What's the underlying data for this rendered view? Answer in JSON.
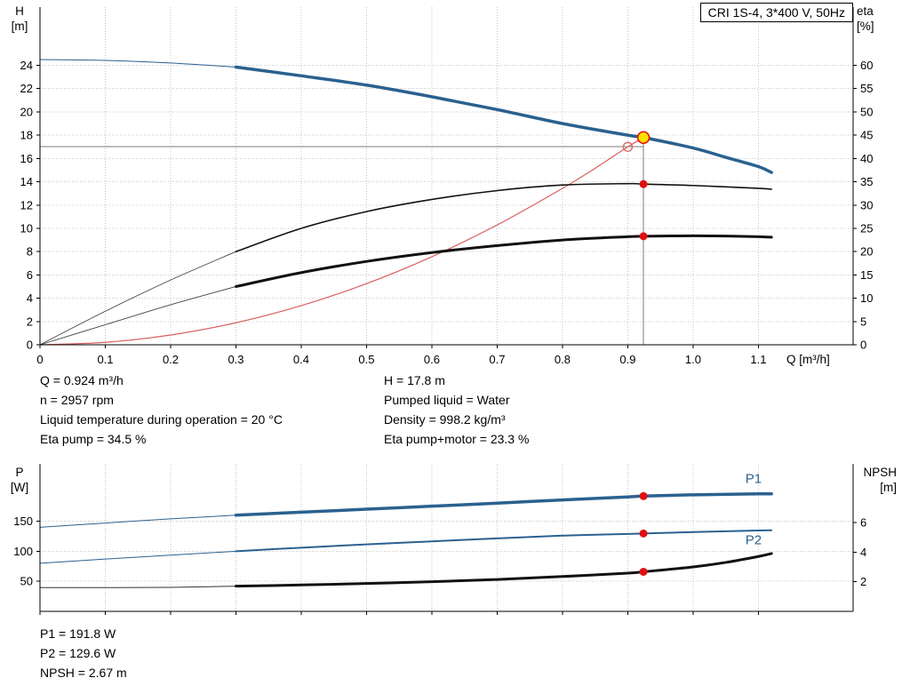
{
  "colors": {
    "curve_blue": "#2a618f",
    "curve_black": "#111111",
    "system_red": "#d95f5f",
    "marker_red": "#e01010",
    "duty_yellow": "#ffdf00",
    "grid_gray": "#c9c9c9",
    "guide_gray": "#7d7d7d"
  },
  "operating_point_info": {
    "left": [
      "Q = 0.924 m³/h",
      "n = 2957 rpm",
      "Liquid temperature during operation = 20 °C",
      "Eta pump = 34.5 %"
    ],
    "right": [
      "H = 17.8 m",
      "Pumped liquid = Water",
      "Density = 998.2 kg/m³",
      "Eta pump+motor = 23.3 %"
    ]
  },
  "power_info": [
    "P1 = 191.8 W",
    "P2 = 129.6 W",
    "NPSH = 2.67 m"
  ],
  "chart_data": [
    {
      "type": "line",
      "title": "CRI 1S-4, 3*400 V, 50Hz",
      "xlabel": "Q [m³/h]",
      "ylabel_left": "H",
      "ylabel_left_unit": "[m]",
      "ylabel_right": "eta",
      "ylabel_right_unit": "[%]",
      "xlim": [
        0,
        1.245
      ],
      "ylim_left": [
        0,
        29
      ],
      "ylim_right": [
        0,
        72.5
      ],
      "grid": true,
      "x_ticks": [
        0,
        0.1,
        0.2,
        0.3,
        0.4,
        0.5,
        0.6,
        0.7,
        0.8,
        0.9,
        1.0,
        1.1
      ],
      "x_tick_labels": [
        "0",
        "0.1",
        "0.2",
        "0.3",
        "0.4",
        "0.5",
        "0.6",
        "0.7",
        "0.8",
        "0.9",
        "1.0",
        "1.1"
      ],
      "y_ticks_left": [
        0,
        2,
        4,
        6,
        8,
        10,
        12,
        14,
        16,
        18,
        20,
        22,
        24
      ],
      "y_ticks_right": [
        0,
        5,
        10,
        15,
        20,
        25,
        30,
        35,
        40,
        45,
        50,
        55,
        60
      ],
      "guides": {
        "h_line": {
          "y": 17.0,
          "x_end": 0.924
        },
        "v_line": {
          "x": 0.924,
          "y_top": 17.8
        }
      },
      "series": [
        {
          "name": "system-curve",
          "axis": "left",
          "color": "#d95f5f",
          "width": 1.2,
          "points": [
            [
              0,
              0
            ],
            [
              0.1,
              0.21
            ],
            [
              0.2,
              0.84
            ],
            [
              0.3,
              1.89
            ],
            [
              0.4,
              3.36
            ],
            [
              0.5,
              5.25
            ],
            [
              0.6,
              7.56
            ],
            [
              0.7,
              10.29
            ],
            [
              0.8,
              13.43
            ],
            [
              0.85,
              15.16
            ],
            [
              0.9,
              17.0
            ],
            [
              0.924,
              17.8
            ]
          ]
        },
        {
          "name": "head-curve-low-flow",
          "axis": "left",
          "color": "#2a618f",
          "width": 1,
          "points": [
            [
              0,
              24.5
            ],
            [
              0.1,
              24.42
            ],
            [
              0.2,
              24.2
            ],
            [
              0.3,
              23.85
            ]
          ]
        },
        {
          "name": "head-curve",
          "axis": "left",
          "color": "#2a618f",
          "width": 3.5,
          "points": [
            [
              0.3,
              23.85
            ],
            [
              0.4,
              23.1
            ],
            [
              0.5,
              22.3
            ],
            [
              0.6,
              21.3
            ],
            [
              0.7,
              20.2
            ],
            [
              0.8,
              19.0
            ],
            [
              0.9,
              18.0
            ],
            [
              0.924,
              17.8
            ],
            [
              1.0,
              16.9
            ],
            [
              1.05,
              16.1
            ],
            [
              1.1,
              15.3
            ],
            [
              1.12,
              14.8
            ]
          ]
        },
        {
          "name": "eta-pump-low-flow",
          "axis": "right",
          "color": "#444444",
          "width": 0.9,
          "points": [
            [
              0,
              0
            ],
            [
              0.1,
              7.2
            ],
            [
              0.2,
              13.9
            ],
            [
              0.3,
              20
            ]
          ]
        },
        {
          "name": "eta-pump-motor-low-flow",
          "axis": "right",
          "color": "#444444",
          "width": 0.9,
          "points": [
            [
              0,
              0
            ],
            [
              0.1,
              4.3
            ],
            [
              0.2,
              8.6
            ],
            [
              0.3,
              12.5
            ]
          ]
        },
        {
          "name": "eta-pump-curve",
          "axis": "right",
          "color": "#111111",
          "width": 1.6,
          "points": [
            [
              0.3,
              20
            ],
            [
              0.4,
              25
            ],
            [
              0.5,
              28.6
            ],
            [
              0.6,
              31.2
            ],
            [
              0.7,
              33.1
            ],
            [
              0.8,
              34.3
            ],
            [
              0.9,
              34.6
            ],
            [
              0.924,
              34.5
            ],
            [
              1.0,
              34.2
            ],
            [
              1.1,
              33.6
            ],
            [
              1.12,
              33.4
            ]
          ]
        },
        {
          "name": "eta-pump-motor-curve",
          "axis": "right",
          "color": "#111111",
          "width": 3,
          "points": [
            [
              0.3,
              12.5
            ],
            [
              0.4,
              15.5
            ],
            [
              0.5,
              17.9
            ],
            [
              0.6,
              19.8
            ],
            [
              0.7,
              21.3
            ],
            [
              0.8,
              22.5
            ],
            [
              0.9,
              23.2
            ],
            [
              0.924,
              23.3
            ],
            [
              1.0,
              23.4
            ],
            [
              1.05,
              23.35
            ],
            [
              1.1,
              23.2
            ],
            [
              1.12,
              23.1
            ]
          ]
        }
      ],
      "markers": [
        {
          "type": "open",
          "x": 0.9,
          "y": 17.0,
          "axis": "left",
          "name": "requested-duty-point"
        },
        {
          "type": "duty",
          "x": 0.924,
          "y": 17.8,
          "axis": "left",
          "name": "actual-duty-point"
        },
        {
          "type": "dot",
          "x": 0.924,
          "y": 34.5,
          "axis": "right",
          "name": "eta-pump-duty-marker"
        },
        {
          "type": "dot",
          "x": 0.924,
          "y": 23.3,
          "axis": "right",
          "name": "eta-pump-motor-duty-marker"
        }
      ]
    },
    {
      "type": "line",
      "ylabel_left": "P",
      "ylabel_left_unit": "[W]",
      "ylabel_right": "NPSH",
      "ylabel_right_unit": "[m]",
      "xlim": [
        0,
        1.245
      ],
      "ylim_left": [
        0,
        245.5
      ],
      "ylim_right": [
        0,
        9.95
      ],
      "grid": true,
      "x_ticks": [
        0,
        0.1,
        0.2,
        0.3,
        0.4,
        0.5,
        0.6,
        0.7,
        0.8,
        0.9,
        1.0,
        1.1
      ],
      "y_ticks_left": [
        50,
        100,
        150
      ],
      "y_ticks_right": [
        2,
        4,
        6
      ],
      "series": [
        {
          "name": "p1-curve-low-flow",
          "axis": "left",
          "color": "#2a618f",
          "width": 1,
          "points": [
            [
              0,
              140
            ],
            [
              0.1,
              147
            ],
            [
              0.2,
              154
            ],
            [
              0.3,
              160
            ]
          ]
        },
        {
          "name": "p2-curve-low-flow",
          "axis": "left",
          "color": "#2a618f",
          "width": 1,
          "points": [
            [
              0,
              80
            ],
            [
              0.1,
              87
            ],
            [
              0.2,
              93.5
            ],
            [
              0.3,
              100
            ]
          ]
        },
        {
          "name": "npsh-curve-low-flow",
          "axis": "right",
          "color": "#333333",
          "width": 1,
          "points": [
            [
              0,
              1.6
            ],
            [
              0.2,
              1.62
            ],
            [
              0.3,
              1.7
            ]
          ]
        },
        {
          "name": "p1-curve",
          "axis": "left",
          "color": "#2a618f",
          "width": 3.5,
          "points": [
            [
              0.3,
              160
            ],
            [
              0.4,
              165
            ],
            [
              0.5,
              170
            ],
            [
              0.6,
              175
            ],
            [
              0.7,
              180
            ],
            [
              0.8,
              185.5
            ],
            [
              0.9,
              190.5
            ],
            [
              0.924,
              191.8
            ],
            [
              1.0,
              194
            ],
            [
              1.1,
              195.5
            ],
            [
              1.12,
              195.5
            ]
          ]
        },
        {
          "name": "p2-curve",
          "axis": "left",
          "color": "#2a618f",
          "width": 2,
          "points": [
            [
              0.3,
              100
            ],
            [
              0.4,
              106
            ],
            [
              0.5,
              111.5
            ],
            [
              0.6,
              116.5
            ],
            [
              0.7,
              121.5
            ],
            [
              0.8,
              126
            ],
            [
              0.9,
              128.8
            ],
            [
              0.924,
              129.6
            ],
            [
              1.0,
              132
            ],
            [
              1.1,
              134.5
            ],
            [
              1.12,
              135
            ]
          ]
        },
        {
          "name": "npsh-curve",
          "axis": "right",
          "color": "#111111",
          "width": 3,
          "points": [
            [
              0.3,
              1.7
            ],
            [
              0.4,
              1.78
            ],
            [
              0.5,
              1.88
            ],
            [
              0.6,
              2.0
            ],
            [
              0.7,
              2.15
            ],
            [
              0.8,
              2.35
            ],
            [
              0.9,
              2.58
            ],
            [
              0.924,
              2.67
            ],
            [
              1.0,
              3.0
            ],
            [
              1.05,
              3.3
            ],
            [
              1.1,
              3.7
            ],
            [
              1.12,
              3.9
            ]
          ]
        }
      ],
      "markers": [
        {
          "type": "dot",
          "x": 0.924,
          "y": 191.8,
          "axis": "left",
          "name": "p1-duty-marker"
        },
        {
          "type": "dot",
          "x": 0.924,
          "y": 129.6,
          "axis": "left",
          "name": "p2-duty-marker"
        },
        {
          "type": "dot",
          "x": 0.924,
          "y": 2.67,
          "axis": "right",
          "name": "npsh-duty-marker"
        }
      ],
      "labels": [
        {
          "text": "P1",
          "x": 1.08,
          "y": 214,
          "axis": "left",
          "color": "#2a618f",
          "name": "p1-curve-label"
        },
        {
          "text": "P2",
          "x": 1.08,
          "y": 112,
          "axis": "left",
          "color": "#2a618f",
          "name": "p2-curve-label"
        }
      ]
    }
  ]
}
